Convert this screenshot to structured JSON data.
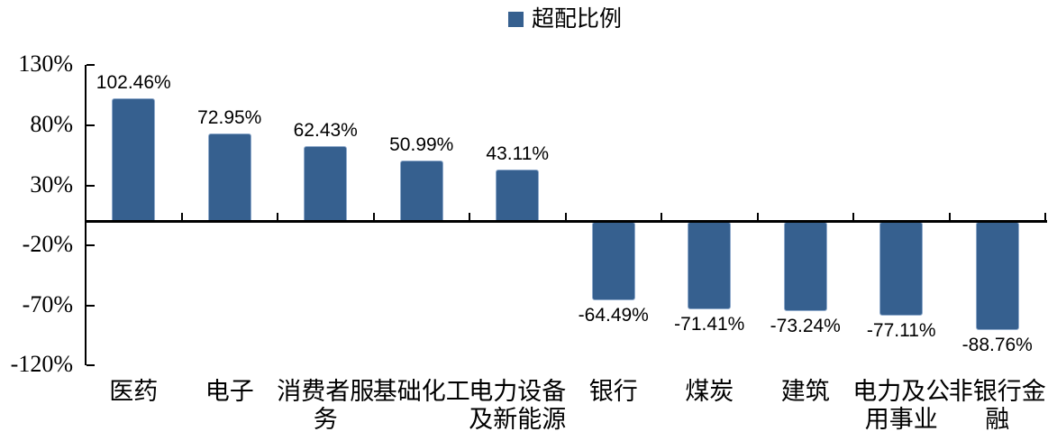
{
  "chart_data": {
    "type": "bar",
    "title": "",
    "legend_position": "top-center",
    "grid": false,
    "series": [
      {
        "name": "超配比例",
        "values": [
          102.46,
          72.95,
          62.43,
          50.99,
          43.11,
          -64.49,
          -71.41,
          -73.24,
          -77.11,
          -88.76
        ]
      }
    ],
    "categories": [
      "医药",
      "电子",
      "消费者服\n务",
      "基础化工",
      "电力设备\n及新能源",
      "银行",
      "煤炭",
      "建筑",
      "电力及公\n用事业",
      "非银行金\n融"
    ],
    "data_labels": [
      "102.46%",
      "72.95%",
      "62.43%",
      "50.99%",
      "43.11%",
      "-64.49%",
      "-71.41%",
      "-73.24%",
      "-77.11%",
      "-88.76%"
    ],
    "y_axis": {
      "tick_values": [
        130,
        80,
        30,
        -20,
        -70,
        -120
      ],
      "tick_labels": [
        "130%",
        "80%",
        "30%",
        "-20%",
        "-70%",
        "-120%"
      ],
      "ylim": [
        -120,
        130
      ]
    },
    "xlabel": "",
    "ylabel": "",
    "colors": {
      "bar": "#36608F",
      "bar_border": "#8FAACB",
      "axis": "#000000",
      "text": "#000000"
    }
  }
}
